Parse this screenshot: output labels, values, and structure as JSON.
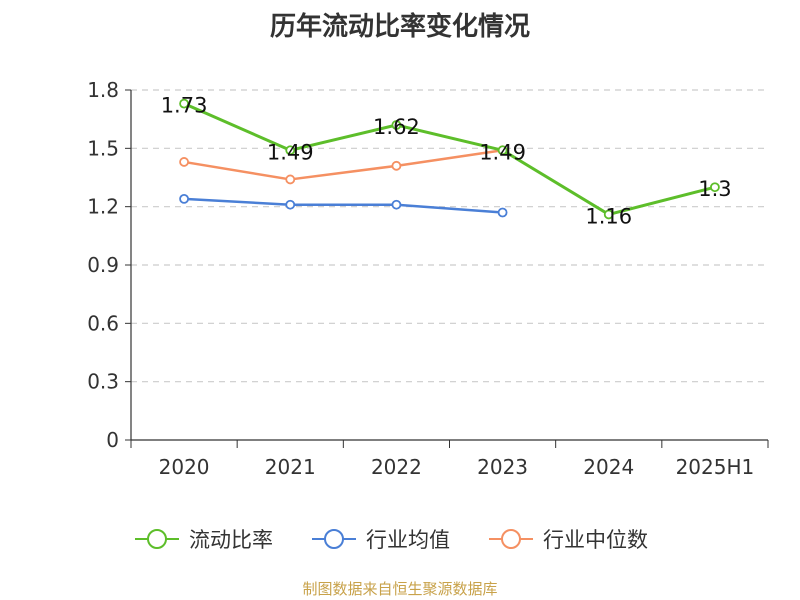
{
  "chart_data": {
    "type": "line",
    "title": "历年流动比率变化情况",
    "categories": [
      "2020",
      "2021",
      "2022",
      "2023",
      "2024",
      "2025H1"
    ],
    "ylim": [
      0,
      1.8
    ],
    "yticks": [
      "0",
      "0.3",
      "0.6",
      "0.9",
      "1.2",
      "1.5",
      "1.8"
    ],
    "grid": true,
    "legend_position": "bottom",
    "series": [
      {
        "name": "流动比率",
        "color": "#5dbe2a",
        "values": [
          1.73,
          1.49,
          1.62,
          1.49,
          1.16,
          1.3
        ],
        "labels": [
          "1.73",
          "1.49",
          "1.62",
          "1.49",
          "1.16",
          "1.3"
        ]
      },
      {
        "name": "行业均值",
        "color": "#4a7fd6",
        "values": [
          1.24,
          1.21,
          1.21,
          1.17,
          null,
          null
        ]
      },
      {
        "name": "行业中位数",
        "color": "#f59062",
        "values": [
          1.43,
          1.34,
          1.41,
          1.49,
          null,
          null
        ]
      }
    ]
  },
  "source": "制图数据来自恒生聚源数据库"
}
